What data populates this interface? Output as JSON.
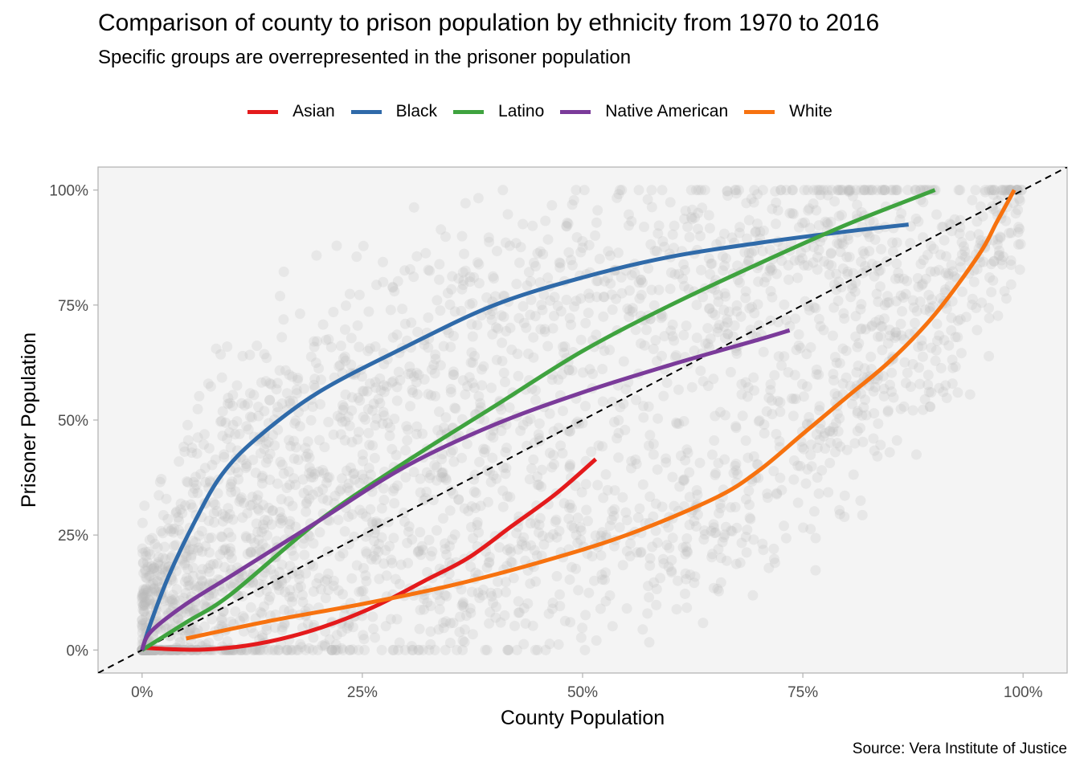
{
  "chart_data": {
    "type": "scatter",
    "title": "Comparison of county to prison population by ethnicity from 1970 to 2016",
    "subtitle": "Specific groups are overrepresented in the prisoner population",
    "xlabel": "County Population",
    "ylabel": "Prisoner Population",
    "caption": "Source: Vera Institute of Justice",
    "xlim": [
      -0.05,
      1.05
    ],
    "ylim": [
      -0.05,
      1.05
    ],
    "xticks": [
      0,
      0.25,
      0.5,
      0.75,
      1.0
    ],
    "xtick_labels": [
      "0%",
      "25%",
      "50%",
      "75%",
      "100%"
    ],
    "yticks": [
      0,
      0.25,
      0.5,
      0.75,
      1.0
    ],
    "ytick_labels": [
      "0%",
      "25%",
      "50%",
      "75%",
      "100%"
    ],
    "legend_position": "top",
    "grid": false,
    "reference_line": {
      "type": "identity",
      "style": "dashed",
      "color": "#000000"
    },
    "scatter_color": "#bbbbbb",
    "panel_background": "#f4f4f4",
    "series": [
      {
        "name": "Asian",
        "color": "#e41a1c",
        "x": [
          0.0,
          0.03,
          0.07,
          0.12,
          0.17,
          0.22,
          0.27,
          0.32,
          0.37,
          0.42,
          0.47,
          0.515
        ],
        "y": [
          0.005,
          0.002,
          0.001,
          0.01,
          0.03,
          0.06,
          0.1,
          0.15,
          0.2,
          0.27,
          0.34,
          0.415
        ]
      },
      {
        "name": "Black",
        "color": "#2f6aa9",
        "x": [
          0.0,
          0.01,
          0.03,
          0.06,
          0.09,
          0.13,
          0.2,
          0.3,
          0.4,
          0.5,
          0.6,
          0.7,
          0.8,
          0.87
        ],
        "y": [
          0.0,
          0.06,
          0.16,
          0.28,
          0.38,
          0.46,
          0.56,
          0.66,
          0.75,
          0.81,
          0.855,
          0.885,
          0.91,
          0.925
        ]
      },
      {
        "name": "Latino",
        "color": "#3fa33f",
        "x": [
          0.0,
          0.05,
          0.1,
          0.2,
          0.3,
          0.4,
          0.5,
          0.6,
          0.7,
          0.8,
          0.9
        ],
        "y": [
          0.0,
          0.06,
          0.12,
          0.28,
          0.41,
          0.53,
          0.65,
          0.75,
          0.84,
          0.925,
          1.0
        ]
      },
      {
        "name": "Native American",
        "color": "#7b3b9a",
        "x": [
          0.0,
          0.01,
          0.05,
          0.1,
          0.2,
          0.3,
          0.4,
          0.5,
          0.6,
          0.7,
          0.735
        ],
        "y": [
          0.0,
          0.04,
          0.1,
          0.16,
          0.28,
          0.4,
          0.49,
          0.56,
          0.62,
          0.675,
          0.695
        ]
      },
      {
        "name": "White",
        "color": "#f7720f",
        "x": [
          0.05,
          0.15,
          0.25,
          0.35,
          0.45,
          0.55,
          0.65,
          0.7,
          0.75,
          0.8,
          0.85,
          0.9,
          0.95,
          0.97,
          0.99
        ],
        "y": [
          0.025,
          0.065,
          0.1,
          0.14,
          0.19,
          0.25,
          0.33,
          0.39,
          0.47,
          0.55,
          0.63,
          0.73,
          0.86,
          0.93,
          1.0
        ]
      }
    ]
  }
}
